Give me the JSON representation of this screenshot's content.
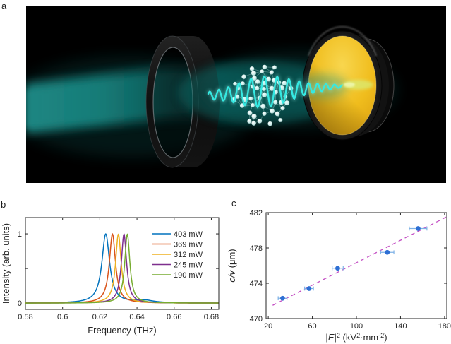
{
  "figure": {
    "background": "#ffffff",
    "panels": {
      "a": {
        "label": "a",
        "type": "illustration",
        "description": "THz beam passing through an open cavity: dark input-coupler ring, molecular cluster with oscillating terahertz wave, gold end mirror",
        "colors": {
          "background": "#000000",
          "beam_teal": "#17807c",
          "wave_cyan": "#35e9e2",
          "molecule": "#d2efec",
          "gold_mirror": "#f0bd1d",
          "mount_dark": "#141414",
          "impact_glow": "#d9ec75"
        }
      },
      "b": {
        "label": "b"
      },
      "c": {
        "label": "c"
      }
    }
  },
  "chart_data": [
    {
      "panel": "b",
      "type": "line",
      "curve_model": "lorentzian",
      "xlabel": "Frequency (THz)",
      "ylabel": "Intensity (arb. units)",
      "xlim": [
        0.58,
        0.684
      ],
      "ylim": [
        -0.09,
        1.235
      ],
      "xticks": [
        0.58,
        0.6,
        0.62,
        0.64,
        0.66,
        0.68
      ],
      "xtick_labels": [
        "0.58",
        "0.6",
        "0.62",
        "0.64",
        "0.66",
        "0.68"
      ],
      "yticks": [
        0,
        1
      ],
      "ytick_labels": [
        "0",
        "1"
      ],
      "ytick_minor": [
        0.5
      ],
      "grid": false,
      "legend_position": "upper right",
      "axis_color": "#262626",
      "series": [
        {
          "label": "403 mW",
          "color": "#0072BD",
          "peak_center_THz": 0.6232,
          "fwhm_THz": 0.005,
          "peak_intensity": 1,
          "shoulder": {
            "center": 0.644,
            "fwhm": 0.012,
            "amplitude": 0.035
          }
        },
        {
          "label": "369 mW",
          "color": "#D95319",
          "peak_center_THz": 0.6268,
          "fwhm_THz": 0.004,
          "peak_intensity": 1
        },
        {
          "label": "312 mW",
          "color": "#EDB120",
          "peak_center_THz": 0.63,
          "fwhm_THz": 0.0036,
          "peak_intensity": 1
        },
        {
          "label": "245 mW",
          "color": "#7E2F8E",
          "peak_center_THz": 0.633,
          "fwhm_THz": 0.0034,
          "peak_intensity": 1
        },
        {
          "label": "190 mW",
          "color": "#77AC30",
          "peak_center_THz": 0.6348,
          "fwhm_THz": 0.0033,
          "peak_intensity": 1
        }
      ]
    },
    {
      "panel": "c",
      "type": "scatter",
      "xlabel_segments": [
        {
          "t": "|"
        },
        {
          "t": "E",
          "i": 1
        },
        {
          "t": "|"
        },
        {
          "t": "2",
          "sup": 1
        },
        {
          "t": " (kV"
        },
        {
          "t": "2",
          "sup": 1
        },
        {
          "t": "·mm"
        },
        {
          "t": "-2",
          "sup": 1
        },
        {
          "t": ")"
        }
      ],
      "ylabel_segments": [
        {
          "t": "c/v",
          "i": 1
        },
        {
          "t": " (μm)"
        }
      ],
      "xlim": [
        18,
        182
      ],
      "ylim": [
        470,
        482
      ],
      "xticks": [
        20,
        60,
        100,
        140,
        180
      ],
      "xtick_labels": [
        "20",
        "60",
        "100",
        "140",
        "180"
      ],
      "yticks": [
        470,
        474,
        478,
        482
      ],
      "ytick_labels": [
        "470",
        "474",
        "478",
        "482"
      ],
      "grid": false,
      "axis_color": "#262626",
      "marker_color": "#2E6FD4",
      "errorbar_color": "#7FB2E6",
      "points": [
        {
          "x": 33,
          "y": 472.3,
          "xerr": 4
        },
        {
          "x": 57,
          "y": 473.4,
          "xerr": 4
        },
        {
          "x": 83,
          "y": 475.7,
          "xerr": 5
        },
        {
          "x": 128,
          "y": 477.5,
          "xerr": 6
        },
        {
          "x": 156,
          "y": 480.2,
          "xerr": 8
        }
      ],
      "fit_line": {
        "style": "dashed",
        "color": "#C44FC4",
        "x_start": 24,
        "y_start": 471.5,
        "x_end": 181.5,
        "y_end": 481.5
      }
    }
  ]
}
